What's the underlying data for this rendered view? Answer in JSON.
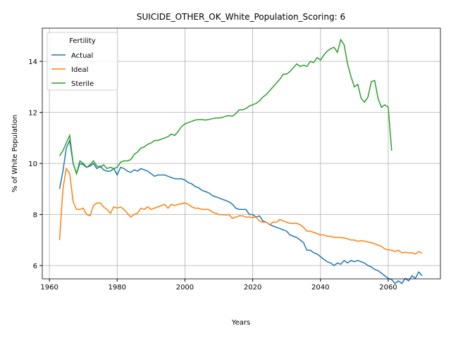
{
  "chart_data": {
    "type": "line",
    "title": "SUICIDE_OTHER_OK_White_Population_Scoring: 6",
    "xlabel": "Years",
    "ylabel": "% of White Population",
    "legend_title": "Fertility",
    "legend": "upper left",
    "grid": true,
    "xlim": [
      1957.9,
      2075.4
    ],
    "ylim": [
      5.48,
      15.3
    ],
    "xticks": [
      1960,
      1980,
      2000,
      2020,
      2040,
      2060
    ],
    "yticks": [
      6,
      8,
      10,
      12,
      14
    ],
    "x": [
      1963,
      1964,
      1965,
      1966,
      1967,
      1968,
      1969,
      1970,
      1971,
      1972,
      1973,
      1974,
      1975,
      1976,
      1977,
      1978,
      1979,
      1980,
      1981,
      1982,
      1983,
      1984,
      1985,
      1986,
      1987,
      1988,
      1989,
      1990,
      1991,
      1992,
      1993,
      1994,
      1995,
      1996,
      1997,
      1998,
      1999,
      2000,
      2001,
      2002,
      2003,
      2004,
      2005,
      2006,
      2007,
      2008,
      2009,
      2010,
      2011,
      2012,
      2013,
      2014,
      2015,
      2016,
      2017,
      2018,
      2019,
      2020,
      2021,
      2022,
      2023,
      2024,
      2025,
      2026,
      2027,
      2028,
      2029,
      2030,
      2031,
      2032,
      2033,
      2034,
      2035,
      2036,
      2037,
      2038,
      2039,
      2040,
      2041,
      2042,
      2043,
      2044,
      2045,
      2046,
      2047,
      2048,
      2049,
      2050,
      2051,
      2052,
      2053,
      2054,
      2055,
      2056,
      2057,
      2058,
      2059,
      2060,
      2061,
      2062,
      2063,
      2064,
      2065,
      2066,
      2067,
      2068,
      2069,
      2070
    ],
    "series": [
      {
        "name": "Actual",
        "color": "#1f77b4",
        "values": [
          9.0,
          9.7,
          10.6,
          10.9,
          10.0,
          9.6,
          10.0,
          9.95,
          9.85,
          9.9,
          10.0,
          9.8,
          9.9,
          9.75,
          9.7,
          9.7,
          9.8,
          9.55,
          9.85,
          9.8,
          9.7,
          9.65,
          9.75,
          9.7,
          9.8,
          9.75,
          9.7,
          9.6,
          9.5,
          9.55,
          9.55,
          9.55,
          9.5,
          9.45,
          9.4,
          9.4,
          9.4,
          9.35,
          9.25,
          9.2,
          9.1,
          9.05,
          8.95,
          8.9,
          8.85,
          8.75,
          8.7,
          8.65,
          8.6,
          8.55,
          8.5,
          8.4,
          8.25,
          8.2,
          8.2,
          8.2,
          8.0,
          8.0,
          7.9,
          7.95,
          7.75,
          7.7,
          7.6,
          7.55,
          7.5,
          7.45,
          7.4,
          7.35,
          7.2,
          7.15,
          7.1,
          7.0,
          6.9,
          6.6,
          6.6,
          6.5,
          6.45,
          6.35,
          6.25,
          6.15,
          6.1,
          6.0,
          6.1,
          6.05,
          6.2,
          6.1,
          6.2,
          6.15,
          6.2,
          6.15,
          6.1,
          6.0,
          5.95,
          5.85,
          5.8,
          5.7,
          5.6,
          5.5,
          5.45,
          5.3,
          5.4,
          5.3,
          5.5,
          5.4,
          5.6,
          5.5,
          5.75,
          5.6
        ]
      },
      {
        "name": "Ideal",
        "color": "#ff7f0e",
        "values": [
          7.0,
          9.0,
          9.8,
          9.6,
          8.5,
          8.2,
          8.2,
          8.25,
          8.0,
          7.95,
          8.35,
          8.45,
          8.45,
          8.3,
          8.2,
          8.05,
          8.3,
          8.25,
          8.3,
          8.2,
          8.05,
          7.9,
          8.0,
          8.05,
          8.25,
          8.2,
          8.3,
          8.2,
          8.25,
          8.3,
          8.35,
          8.4,
          8.25,
          8.4,
          8.35,
          8.4,
          8.42,
          8.45,
          8.4,
          8.3,
          8.25,
          8.25,
          8.2,
          8.2,
          8.2,
          8.1,
          8.05,
          8.0,
          8.0,
          7.98,
          8.0,
          7.85,
          7.9,
          7.95,
          7.95,
          7.9,
          7.9,
          7.88,
          7.9,
          7.75,
          7.7,
          7.7,
          7.6,
          7.7,
          7.7,
          7.8,
          7.75,
          7.7,
          7.65,
          7.65,
          7.65,
          7.6,
          7.5,
          7.35,
          7.35,
          7.3,
          7.25,
          7.2,
          7.2,
          7.15,
          7.15,
          7.1,
          7.1,
          7.1,
          7.08,
          7.05,
          7.0,
          7.0,
          6.95,
          6.98,
          6.95,
          6.92,
          6.9,
          6.85,
          6.8,
          6.75,
          6.65,
          6.62,
          6.6,
          6.55,
          6.6,
          6.5,
          6.52,
          6.5,
          6.5,
          6.45,
          6.55,
          6.48
        ]
      },
      {
        "name": "Sterile",
        "color": "#2ca02c",
        "values": [
          10.3,
          10.5,
          10.8,
          11.1,
          10.0,
          9.6,
          10.1,
          10.0,
          9.85,
          9.95,
          10.1,
          9.9,
          9.85,
          9.95,
          9.8,
          9.85,
          9.8,
          9.85,
          10.05,
          10.1,
          10.1,
          10.15,
          10.35,
          10.45,
          10.6,
          10.65,
          10.75,
          10.8,
          10.9,
          10.9,
          10.95,
          11.0,
          11.05,
          11.15,
          11.1,
          11.25,
          11.45,
          11.55,
          11.6,
          11.65,
          11.7,
          11.72,
          11.72,
          11.7,
          11.72,
          11.75,
          11.78,
          11.78,
          11.8,
          11.85,
          11.87,
          11.85,
          11.95,
          12.1,
          12.1,
          12.15,
          12.25,
          12.3,
          12.35,
          12.45,
          12.6,
          12.7,
          12.85,
          13.0,
          13.15,
          13.3,
          13.5,
          13.5,
          13.6,
          13.75,
          13.9,
          13.8,
          13.85,
          13.8,
          14.0,
          13.95,
          14.15,
          14.05,
          14.25,
          14.4,
          14.5,
          14.55,
          14.35,
          14.85,
          14.65,
          13.9,
          13.4,
          13.0,
          13.1,
          12.55,
          12.4,
          12.6,
          13.2,
          13.25,
          12.55,
          12.2,
          12.3,
          12.2,
          10.5,
          null,
          null,
          null,
          null,
          null,
          null,
          null,
          null,
          null
        ]
      }
    ]
  }
}
